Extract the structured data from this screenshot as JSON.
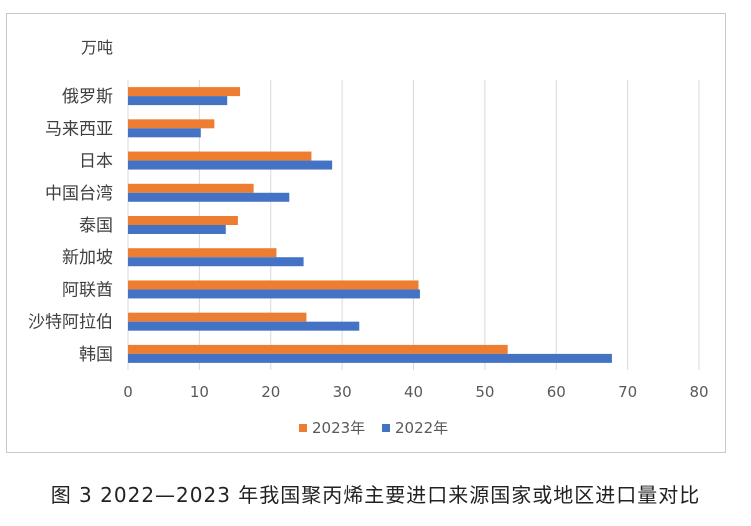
{
  "chart_data": {
    "type": "bar",
    "orientation": "horizontal",
    "unit_label": "万吨",
    "categories": [
      "俄罗斯",
      "马来西亚",
      "日本",
      "中国台湾",
      "泰国",
      "新加坡",
      "阿联酋",
      "沙特阿拉伯",
      "韩国"
    ],
    "series": [
      {
        "name": "2023年",
        "color": "#ED7D31",
        "values": [
          15.7,
          12.1,
          25.7,
          17.6,
          15.4,
          20.8,
          40.7,
          25.0,
          53.2
        ]
      },
      {
        "name": "2022年",
        "color": "#4472C4",
        "values": [
          13.9,
          10.2,
          28.6,
          22.6,
          13.7,
          24.6,
          40.9,
          32.4,
          67.8
        ]
      }
    ],
    "xlim": [
      0,
      80
    ],
    "xticks": [
      0,
      10,
      20,
      30,
      40,
      50,
      60,
      70,
      80
    ],
    "grid": true,
    "legend_position": "bottom"
  },
  "caption": "图 3  2022—2023 年我国聚丙烯主要进口来源国家或地区进口量对比"
}
